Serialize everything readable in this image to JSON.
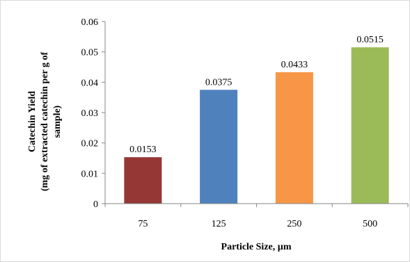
{
  "chart_data": {
    "type": "bar",
    "categories": [
      "75",
      "125",
      "250",
      "500"
    ],
    "values": [
      0.0153,
      0.0375,
      0.0433,
      0.0515
    ],
    "data_labels": [
      "0.0153",
      "0.0375",
      "0.0433",
      "0.0515"
    ],
    "colors": [
      "#953735",
      "#4f81bd",
      "#f79646",
      "#9bbb59"
    ],
    "title": "",
    "xlabel": "Particle Size, µm",
    "ylabel_lines": [
      "Catechin Yield",
      "(mg of extracted catechin per g of",
      "sample)"
    ],
    "ylim": [
      0,
      0.06
    ],
    "yticks": [
      "0",
      "0.01",
      "0.02",
      "0.03",
      "0.04",
      "0.05",
      "0.06"
    ],
    "grid": false,
    "legend": "none"
  }
}
